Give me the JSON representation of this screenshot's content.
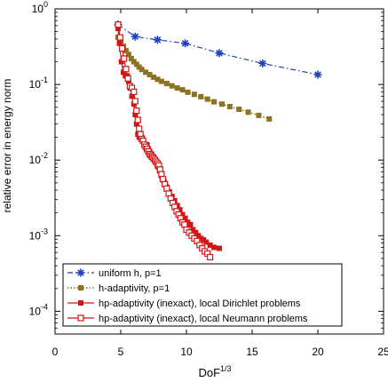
{
  "chart_data": {
    "type": "line",
    "xlabel": "DoF",
    "xlabel_sup": "1/3",
    "ylabel": "relative error in energy norm",
    "xlim": [
      0,
      25
    ],
    "ylim": [
      5e-05,
      1
    ],
    "yscale": "log",
    "x_ticks": [
      0,
      5,
      10,
      15,
      20,
      25
    ],
    "x_tick_labels": [
      "0",
      "5",
      "10",
      "15",
      "20",
      "25"
    ],
    "y_ticks": [
      0.0001,
      0.001,
      0.01,
      0.1,
      1
    ],
    "y_tick_labels": [
      {
        "base": "10",
        "exp": "-4"
      },
      {
        "base": "10",
        "exp": "-3"
      },
      {
        "base": "10",
        "exp": "-2"
      },
      {
        "base": "10",
        "exp": "-1"
      },
      {
        "base": "10",
        "exp": "0"
      }
    ],
    "grid": false,
    "legend_position": "bottom-left",
    "series": [
      {
        "name": "uniform h, p=1",
        "color": "#1f3fbf",
        "line_style": "dash-dot",
        "marker": "asterisk",
        "x": [
          4.8,
          6.1,
          7.8,
          9.9,
          12.5,
          15.8,
          20.0
        ],
        "y": [
          0.62,
          0.43,
          0.39,
          0.35,
          0.26,
          0.19,
          0.135
        ]
      },
      {
        "name": "h-adaptivity, p=1",
        "color": "#8c7321",
        "line_style": "dotted",
        "marker": "filled-square",
        "x": [
          4.8,
          5.0,
          5.2,
          5.4,
          5.6,
          5.8,
          6.0,
          6.2,
          6.4,
          6.6,
          6.9,
          7.2,
          7.5,
          7.8,
          8.1,
          8.5,
          8.9,
          9.3,
          9.7,
          10.1,
          10.6,
          11.1,
          11.6,
          12.1,
          12.7,
          13.3,
          14.0,
          14.7,
          15.5,
          16.3
        ],
        "y": [
          0.42,
          0.37,
          0.32,
          0.28,
          0.25,
          0.22,
          0.2,
          0.185,
          0.17,
          0.158,
          0.145,
          0.135,
          0.125,
          0.117,
          0.11,
          0.103,
          0.096,
          0.09,
          0.085,
          0.079,
          0.074,
          0.069,
          0.064,
          0.059,
          0.055,
          0.051,
          0.047,
          0.043,
          0.039,
          0.035
        ]
      },
      {
        "name": "hp-adaptivity (inexact), local Dirichlet problems",
        "color": "#d01717",
        "line_style": "solid",
        "marker": "filled-square",
        "x": [
          4.8,
          4.9,
          5.05,
          5.2,
          5.35,
          5.5,
          5.6,
          5.72,
          5.85,
          6.0,
          6.1,
          6.2,
          6.3,
          6.4,
          6.5,
          6.6,
          6.7,
          6.8,
          6.9,
          7.0,
          7.1,
          7.2,
          7.35,
          7.5,
          7.65,
          7.8,
          7.95,
          8.1,
          8.3,
          8.5,
          8.7,
          8.9,
          9.1,
          9.3,
          9.5,
          9.7,
          9.9,
          10.1,
          10.3,
          10.5,
          10.7,
          10.9,
          11.1,
          11.3,
          11.5,
          11.8,
          12.1,
          12.5
        ],
        "y": [
          0.55,
          0.35,
          0.2,
          0.145,
          0.13,
          0.13,
          0.11,
          0.09,
          0.07,
          0.055,
          0.04,
          0.03,
          0.022,
          0.02,
          0.022,
          0.02,
          0.018,
          0.016,
          0.015,
          0.016,
          0.014,
          0.013,
          0.012,
          0.011,
          0.0095,
          0.0082,
          0.0072,
          0.0062,
          0.0052,
          0.0044,
          0.0038,
          0.0033,
          0.0029,
          0.0025,
          0.0022,
          0.0019,
          0.0017,
          0.0015,
          0.0014,
          0.0012,
          0.0011,
          0.001,
          0.00092,
          0.00088,
          0.00082,
          0.00075,
          0.0007,
          0.00068
        ]
      },
      {
        "name": "hp-adaptivity (inexact), local Neumann problems",
        "color": "#d01717",
        "line_style": "solid",
        "marker": "open-square",
        "x": [
          4.8,
          4.95,
          5.1,
          5.25,
          5.4,
          5.55,
          5.7,
          5.85,
          6.0,
          6.1,
          6.2,
          6.3,
          6.4,
          6.5,
          6.6,
          6.7,
          6.8,
          6.9,
          7.0,
          7.1,
          7.2,
          7.3,
          7.4,
          7.5,
          7.6,
          7.7,
          7.8,
          7.9,
          8.0,
          8.1,
          8.2,
          8.35,
          8.5,
          8.65,
          8.8,
          8.95,
          9.1,
          9.25,
          9.4,
          9.55,
          9.7,
          9.85,
          10.0,
          10.2,
          10.4,
          10.6,
          10.8,
          11.0,
          11.2,
          11.4,
          11.6,
          11.8
        ],
        "y": [
          0.62,
          0.42,
          0.3,
          0.22,
          0.16,
          0.12,
          0.095,
          0.09,
          0.08,
          0.06,
          0.045,
          0.034,
          0.026,
          0.022,
          0.019,
          0.018,
          0.016,
          0.015,
          0.014,
          0.013,
          0.012,
          0.0115,
          0.011,
          0.0105,
          0.01,
          0.0095,
          0.009,
          0.0085,
          0.0075,
          0.0065,
          0.0056,
          0.0048,
          0.0042,
          0.0036,
          0.0031,
          0.0027,
          0.0024,
          0.0021,
          0.0019,
          0.0017,
          0.0015,
          0.0014,
          0.0012,
          0.0011,
          0.001,
          0.00092,
          0.00085,
          0.00075,
          0.00068,
          0.00062,
          0.00058,
          0.00052
        ]
      }
    ]
  }
}
